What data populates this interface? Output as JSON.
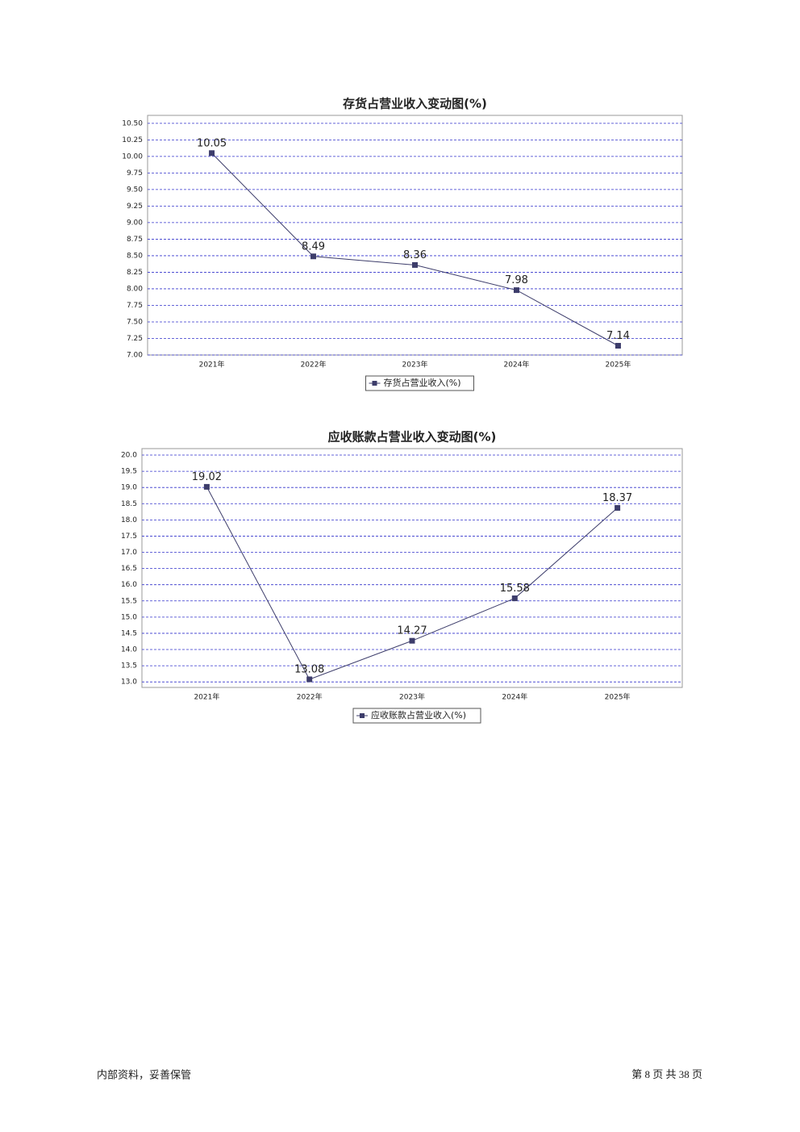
{
  "chart_data": [
    {
      "type": "line",
      "title": "存货占营业收入变动图(%)",
      "categories": [
        "2021年",
        "2022年",
        "2023年",
        "2024年",
        "2025年"
      ],
      "series": [
        {
          "name": "存货占营业收入(%)",
          "color": "#3d3d6b",
          "values": [
            10.05,
            8.49,
            8.36,
            7.98,
            7.14
          ]
        }
      ],
      "ylim": [
        7.0,
        10.62
      ],
      "yticks": [
        {
          "value": 7.0,
          "label": "7.00"
        },
        7.25,
        {
          "value": 7.5,
          "label": "7.50"
        },
        7.75,
        {
          "value": 8.0,
          "label": "8.00"
        },
        8.25,
        {
          "value": 8.5,
          "label": "8.50"
        },
        8.75,
        {
          "value": 9.0,
          "label": "9.00"
        },
        9.25,
        {
          "value": 9.5,
          "label": "9.50"
        },
        9.75,
        {
          "value": 10.0,
          "label": "10.00"
        },
        10.25,
        {
          "value": 10.5,
          "label": "10.50"
        }
      ],
      "grid": true,
      "legend": "bottom"
    },
    {
      "type": "line",
      "title": "应收账款占营业收入变动图(%)",
      "categories": [
        "2021年",
        "2022年",
        "2023年",
        "2024年",
        "2025年"
      ],
      "series": [
        {
          "name": "应收账款占营业收入(%)",
          "color": "#3d3d6b",
          "values": [
            19.02,
            13.08,
            14.27,
            15.58,
            18.37
          ]
        }
      ],
      "ylim": [
        12.83,
        20.2
      ],
      "yticks": [
        {
          "value": 13.0,
          "label": "13.0"
        },
        13.5,
        {
          "value": 14.0,
          "label": "14.0"
        },
        14.5,
        {
          "value": 15.0,
          "label": "15.0"
        },
        15.5,
        {
          "value": 16.0,
          "label": "16.0"
        },
        16.5,
        {
          "value": 17.0,
          "label": "17.0"
        },
        17.5,
        {
          "value": 18.0,
          "label": "18.0"
        },
        18.5,
        {
          "value": 19.0,
          "label": "19.0"
        },
        19.5,
        {
          "value": 20.0,
          "label": "20.0"
        }
      ],
      "grid": true,
      "legend": "bottom"
    }
  ],
  "footer": {
    "left": "内部资料，妥善保管",
    "right": "第 8 页 共 38 页"
  }
}
